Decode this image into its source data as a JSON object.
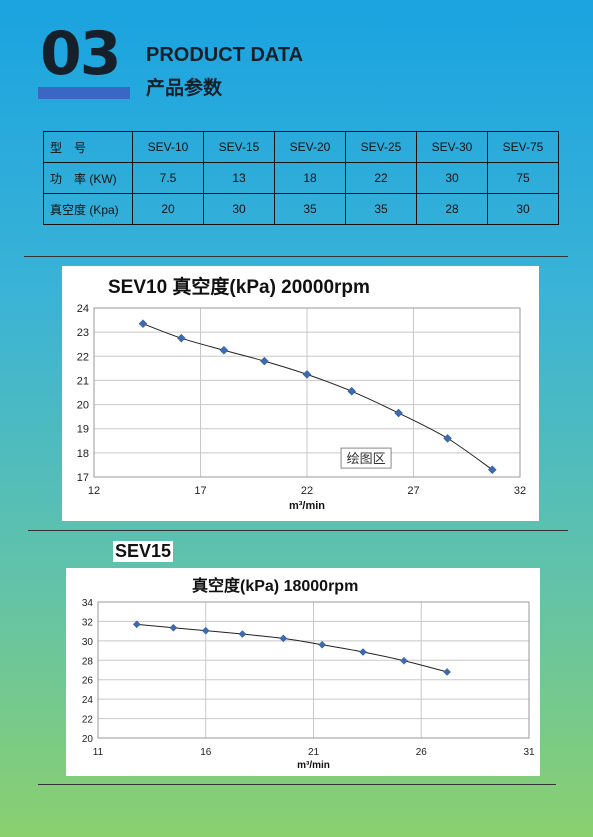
{
  "header": {
    "section_number": "03",
    "title_en": "PRODUCT DATA",
    "title_cn": "产品参数"
  },
  "spec_table": {
    "rows": [
      {
        "label": "型　号",
        "values": [
          "SEV-10",
          "SEV-15",
          "SEV-20",
          "SEV-25",
          "SEV-30",
          "SEV-75"
        ]
      },
      {
        "label": "功　率 (KW)",
        "values": [
          "7.5",
          "13",
          "18",
          "22",
          "30",
          "75"
        ]
      },
      {
        "label": "真空度 (Kpa)",
        "values": [
          "20",
          "30",
          "35",
          "35",
          "28",
          "30"
        ]
      }
    ]
  },
  "colors": {
    "marker": "#3d6bb3",
    "curve": "#222222",
    "grid": "#c8c8c8"
  },
  "chart_data": [
    {
      "type": "line",
      "title": "SEV10  真空度(kPa) 20000rpm",
      "xlabel": "m³/min",
      "ylabel": "",
      "xlim": [
        12,
        32
      ],
      "ylim": [
        17,
        24
      ],
      "xticks": [
        12,
        17,
        22,
        27,
        32
      ],
      "yticks": [
        17,
        18,
        19,
        20,
        21,
        22,
        23,
        24
      ],
      "grid": true,
      "annotation": "绘图区",
      "series": [
        {
          "x": [
            14.3,
            16.1,
            18.1,
            20.0,
            22.0,
            24.1,
            26.3,
            28.6,
            30.7
          ],
          "y": [
            23.35,
            22.75,
            22.25,
            21.8,
            21.25,
            20.55,
            19.65,
            18.6,
            17.3
          ]
        }
      ]
    },
    {
      "type": "line",
      "title": "真空度(kPa) 18000rpm",
      "label": "SEV15",
      "xlabel": "m³/min",
      "ylabel": "",
      "xlim": [
        11,
        31
      ],
      "ylim": [
        20,
        34
      ],
      "xticks": [
        11,
        16,
        21,
        26,
        31
      ],
      "yticks": [
        20,
        22,
        24,
        26,
        28,
        30,
        32,
        34
      ],
      "grid": true,
      "series": [
        {
          "x": [
            12.8,
            14.5,
            16.0,
            17.7,
            19.6,
            21.4,
            23.3,
            25.2,
            27.2
          ],
          "y": [
            31.7,
            31.35,
            31.05,
            30.7,
            30.25,
            29.6,
            28.85,
            27.95,
            26.8
          ]
        }
      ]
    }
  ]
}
